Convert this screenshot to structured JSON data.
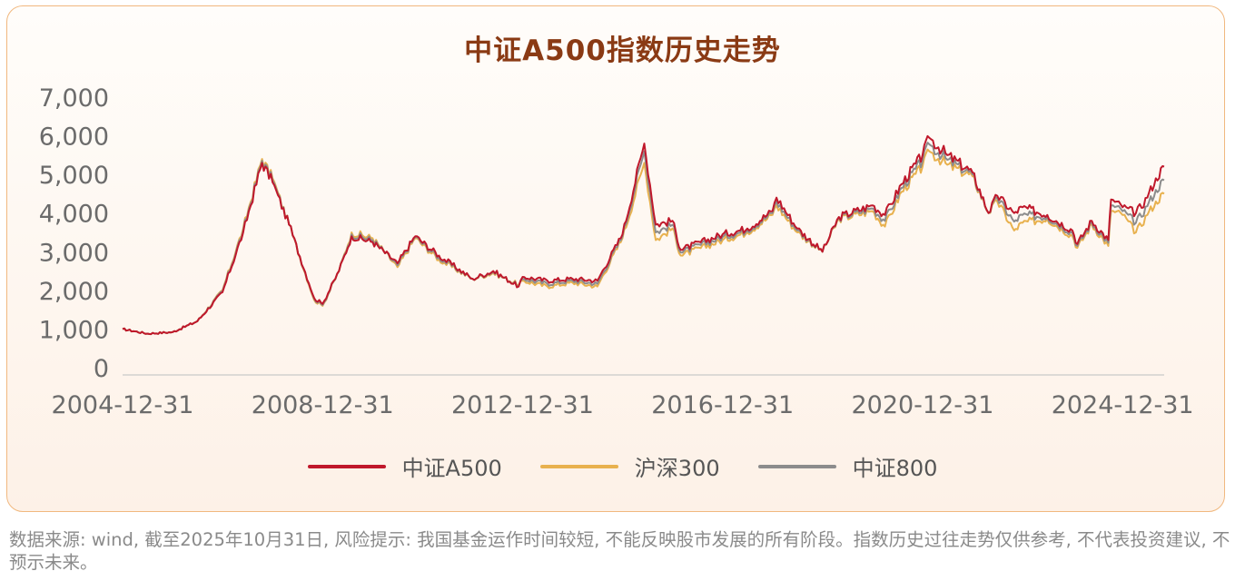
{
  "title": "中证A500指数历史走势",
  "footnote": "数据来源: wind, 截至2025年10月31日, 风险提示: 我国基金运作时间较短, 不能反映股市发展的所有阶段。指数历史过往走势仅供参考, 不代表投资建议, 不预示未来。",
  "colors": {
    "csi_a500": "#c0182b",
    "hs300": "#e8b14e",
    "csi800": "#8c8c8c",
    "title": "#8a3a14",
    "border": "#f1b87f"
  },
  "chart_data": {
    "type": "line",
    "title": "中证A500指数历史走势",
    "xlabel": "",
    "ylabel": "",
    "ylim": [
      0,
      7000
    ],
    "yticks": [
      0,
      1000,
      2000,
      3000,
      4000,
      5000,
      6000,
      7000
    ],
    "ytick_labels": [
      "0",
      "1,000",
      "2,000",
      "3,000",
      "4,000",
      "5,000",
      "6,000",
      "7,000"
    ],
    "xlim": [
      "2004-12-31",
      "2025-10-31"
    ],
    "xticks": [
      "2004-12-31",
      "2008-12-31",
      "2012-12-31",
      "2016-12-31",
      "2020-12-31",
      "2024-12-31"
    ],
    "legend_position": "bottom",
    "grid": false,
    "x": [
      "2004-12-31",
      "2005-06-30",
      "2005-12-31",
      "2006-06-30",
      "2006-12-31",
      "2007-05-31",
      "2007-10-16",
      "2007-12-31",
      "2008-04-30",
      "2008-10-31",
      "2008-12-31",
      "2009-04-30",
      "2009-07-31",
      "2009-12-31",
      "2010-07-01",
      "2010-11-08",
      "2011-04-30",
      "2011-12-31",
      "2012-05-31",
      "2012-12-03",
      "2012-12-31",
      "2013-06-30",
      "2013-12-31",
      "2014-06-30",
      "2014-12-31",
      "2015-06-08",
      "2015-08-31",
      "2015-12-31",
      "2016-02-29",
      "2016-12-31",
      "2017-06-30",
      "2017-12-31",
      "2018-01-29",
      "2018-06-30",
      "2018-12-31",
      "2019-04-30",
      "2019-12-31",
      "2020-03-31",
      "2020-07-31",
      "2020-12-31",
      "2021-02-18",
      "2021-06-30",
      "2021-12-31",
      "2022-04-27",
      "2022-06-30",
      "2022-10-31",
      "2022-12-31",
      "2023-06-30",
      "2023-12-31",
      "2024-02-05",
      "2024-05-20",
      "2024-09-18",
      "2024-10-08",
      "2024-12-31",
      "2025-04-08",
      "2025-06-30",
      "2025-08-31",
      "2025-10-31"
    ],
    "series": [
      {
        "name": "中证A500",
        "color": "#c0182b",
        "values": [
          1000,
          880,
          920,
          1200,
          1950,
          3500,
          5300,
          4800,
          3700,
          1800,
          1650,
          2500,
          3400,
          3250,
          2700,
          3400,
          2900,
          2300,
          2500,
          2100,
          2350,
          2250,
          2300,
          2250,
          3450,
          5800,
          3700,
          3800,
          3050,
          3450,
          3600,
          4050,
          4400,
          3600,
          3000,
          3900,
          4200,
          3950,
          4750,
          5500,
          5950,
          5500,
          5050,
          4000,
          4450,
          4000,
          4150,
          3950,
          3550,
          3200,
          3800,
          3300,
          4350,
          4150,
          4000,
          4400,
          4900,
          5200
        ]
      },
      {
        "name": "沪深300",
        "color": "#e8b14e",
        "values": [
          1000,
          880,
          920,
          1200,
          2000,
          3600,
          5400,
          4900,
          3700,
          1750,
          1600,
          2500,
          3500,
          3350,
          2600,
          3350,
          2800,
          2300,
          2450,
          2150,
          2250,
          2100,
          2200,
          2100,
          3350,
          5300,
          3300,
          3600,
          2900,
          3300,
          3500,
          3950,
          4200,
          3500,
          3000,
          3850,
          4050,
          3650,
          4550,
          5200,
          5600,
          5250,
          4950,
          4000,
          4300,
          3550,
          3750,
          3850,
          3400,
          3100,
          3700,
          3150,
          4050,
          3950,
          3500,
          3950,
          4300,
          4500
        ]
      },
      {
        "name": "中证800",
        "color": "#8c8c8c",
        "values": [
          1000,
          880,
          920,
          1200,
          1980,
          3550,
          5350,
          4850,
          3700,
          1780,
          1620,
          2500,
          3450,
          3300,
          2650,
          3380,
          2850,
          2300,
          2480,
          2120,
          2300,
          2170,
          2250,
          2170,
          3400,
          5600,
          3500,
          3700,
          2980,
          3380,
          3550,
          4000,
          4300,
          3550,
          3000,
          3880,
          4120,
          3800,
          4650,
          5350,
          5780,
          5380,
          5000,
          4000,
          4380,
          3780,
          3950,
          3900,
          3480,
          3150,
          3750,
          3230,
          4200,
          4050,
          3750,
          4180,
          4600,
          4850
        ]
      }
    ]
  }
}
